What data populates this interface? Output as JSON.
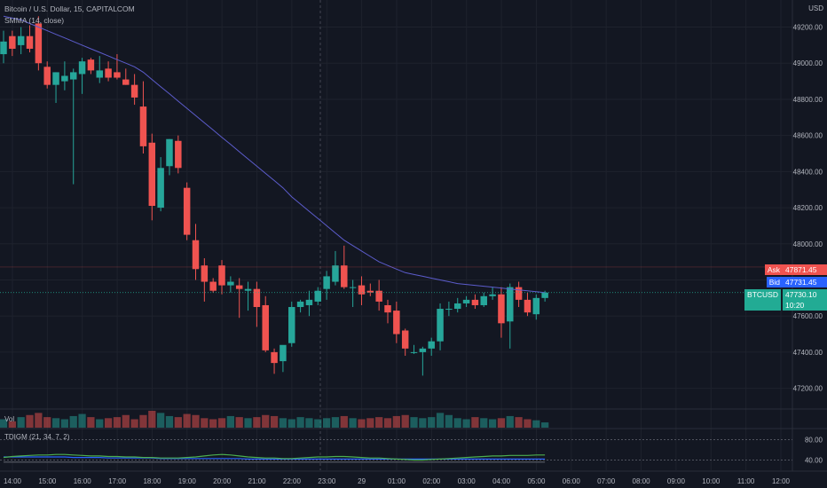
{
  "header": {
    "title": "Bitcoin / U.S. Dollar, 15, CAPITALCOM",
    "indicator": "SMMA (14, close)",
    "currency": "USD"
  },
  "volume_label": "Vol",
  "oscillator_label": "TDIGM (21, 34, 7, 2)",
  "price_tags": {
    "ask_label": "Ask",
    "ask_value": "47871.45",
    "bid_label": "Bid",
    "bid_value": "47731.45",
    "symbol_label": "BTCUSD",
    "last_value": "47730.10",
    "countdown": "10:20"
  },
  "colors": {
    "background": "#131722",
    "up": "#26a69a",
    "down": "#ef5350",
    "smma": "#5c5ccc",
    "ask": "#f05350",
    "bid": "#2962ff",
    "last": "#22ab94"
  },
  "chart_data": {
    "type": "candlestick",
    "title": "Bitcoin / U.S. Dollar, 15, CAPITALCOM",
    "ylabel": "USD",
    "ylim": [
      47090,
      49350
    ],
    "y_ticks": [
      49200,
      49000,
      48800,
      48600,
      48400,
      48200,
      48000,
      47800,
      47600,
      47400,
      47200
    ],
    "x_ticks": [
      "14:00",
      "15:00",
      "16:00",
      "17:00",
      "18:00",
      "19:00",
      "20:00",
      "21:00",
      "22:00",
      "23:00",
      "29",
      "01:00",
      "02:00",
      "03:00",
      "04:00",
      "05:00",
      "06:00",
      "07:00",
      "08:00",
      "09:00",
      "10:00",
      "11:00",
      "12:00"
    ],
    "candles": [
      {
        "o": 49050,
        "h": 49180,
        "l": 49000,
        "c": 49120
      },
      {
        "o": 49150,
        "h": 49180,
        "l": 49040,
        "c": 49080
      },
      {
        "o": 49100,
        "h": 49200,
        "l": 49050,
        "c": 49150
      },
      {
        "o": 49150,
        "h": 49210,
        "l": 49060,
        "c": 49080
      },
      {
        "o": 49220,
        "h": 49260,
        "l": 48960,
        "c": 49000
      },
      {
        "o": 48980,
        "h": 49010,
        "l": 48860,
        "c": 48880
      },
      {
        "o": 48880,
        "h": 48950,
        "l": 48780,
        "c": 48950
      },
      {
        "o": 48900,
        "h": 49010,
        "l": 48850,
        "c": 48930
      },
      {
        "o": 48910,
        "h": 48970,
        "l": 48330,
        "c": 48950
      },
      {
        "o": 48940,
        "h": 49030,
        "l": 48830,
        "c": 49010
      },
      {
        "o": 49020,
        "h": 49030,
        "l": 48940,
        "c": 48960
      },
      {
        "o": 48920,
        "h": 49040,
        "l": 48890,
        "c": 48960
      },
      {
        "o": 48970,
        "h": 49010,
        "l": 48900,
        "c": 48920
      },
      {
        "o": 48950,
        "h": 49050,
        "l": 48910,
        "c": 48920
      },
      {
        "o": 48910,
        "h": 48970,
        "l": 48880,
        "c": 48880
      },
      {
        "o": 48880,
        "h": 48940,
        "l": 48770,
        "c": 48810
      },
      {
        "o": 48760,
        "h": 48900,
        "l": 48500,
        "c": 48540
      },
      {
        "o": 48560,
        "h": 48610,
        "l": 48130,
        "c": 48210
      },
      {
        "o": 48200,
        "h": 48480,
        "l": 48180,
        "c": 48420
      },
      {
        "o": 48430,
        "h": 48580,
        "l": 48380,
        "c": 48580
      },
      {
        "o": 48570,
        "h": 48600,
        "l": 48390,
        "c": 48420
      },
      {
        "o": 48310,
        "h": 48340,
        "l": 48020,
        "c": 48050
      },
      {
        "o": 48020,
        "h": 48110,
        "l": 47800,
        "c": 47860
      },
      {
        "o": 47880,
        "h": 47920,
        "l": 47680,
        "c": 47790
      },
      {
        "o": 47790,
        "h": 47810,
        "l": 47730,
        "c": 47740
      },
      {
        "o": 47880,
        "h": 47910,
        "l": 47720,
        "c": 47770
      },
      {
        "o": 47770,
        "h": 47820,
        "l": 47730,
        "c": 47790
      },
      {
        "o": 47770,
        "h": 47810,
        "l": 47590,
        "c": 47750
      },
      {
        "o": 47740,
        "h": 47790,
        "l": 47630,
        "c": 47750
      },
      {
        "o": 47750,
        "h": 47790,
        "l": 47540,
        "c": 47650
      },
      {
        "o": 47660,
        "h": 47710,
        "l": 47400,
        "c": 47410
      },
      {
        "o": 47400,
        "h": 47420,
        "l": 47280,
        "c": 47340
      },
      {
        "o": 47350,
        "h": 47420,
        "l": 47290,
        "c": 47440
      },
      {
        "o": 47450,
        "h": 47680,
        "l": 47430,
        "c": 47650
      },
      {
        "o": 47650,
        "h": 47690,
        "l": 47620,
        "c": 47680
      },
      {
        "o": 47660,
        "h": 47740,
        "l": 47600,
        "c": 47690
      },
      {
        "o": 47680,
        "h": 47760,
        "l": 47660,
        "c": 47740
      },
      {
        "o": 47750,
        "h": 47850,
        "l": 47690,
        "c": 47820
      },
      {
        "o": 47790,
        "h": 47960,
        "l": 47770,
        "c": 47880
      },
      {
        "o": 47880,
        "h": 47990,
        "l": 47750,
        "c": 47760
      },
      {
        "o": 47760,
        "h": 47800,
        "l": 47650,
        "c": 47760
      },
      {
        "o": 47770,
        "h": 47820,
        "l": 47660,
        "c": 47720
      },
      {
        "o": 47740,
        "h": 47780,
        "l": 47710,
        "c": 47730
      },
      {
        "o": 47740,
        "h": 47800,
        "l": 47630,
        "c": 47680
      },
      {
        "o": 47660,
        "h": 47690,
        "l": 47560,
        "c": 47620
      },
      {
        "o": 47630,
        "h": 47680,
        "l": 47450,
        "c": 47500
      },
      {
        "o": 47520,
        "h": 47530,
        "l": 47380,
        "c": 47420
      },
      {
        "o": 47400,
        "h": 47440,
        "l": 47390,
        "c": 47400
      },
      {
        "o": 47400,
        "h": 47430,
        "l": 47270,
        "c": 47420
      },
      {
        "o": 47420,
        "h": 47480,
        "l": 47380,
        "c": 47460
      },
      {
        "o": 47460,
        "h": 47670,
        "l": 47410,
        "c": 47640
      },
      {
        "o": 47640,
        "h": 47680,
        "l": 47600,
        "c": 47640
      },
      {
        "o": 47640,
        "h": 47700,
        "l": 47620,
        "c": 47670
      },
      {
        "o": 47670,
        "h": 47710,
        "l": 47650,
        "c": 47690
      },
      {
        "o": 47690,
        "h": 47720,
        "l": 47640,
        "c": 47660
      },
      {
        "o": 47660,
        "h": 47730,
        "l": 47650,
        "c": 47710
      },
      {
        "o": 47710,
        "h": 47760,
        "l": 47690,
        "c": 47720
      },
      {
        "o": 47720,
        "h": 47760,
        "l": 47480,
        "c": 47560
      },
      {
        "o": 47570,
        "h": 47780,
        "l": 47420,
        "c": 47760
      },
      {
        "o": 47760,
        "h": 47790,
        "l": 47650,
        "c": 47690
      },
      {
        "o": 47690,
        "h": 47730,
        "l": 47600,
        "c": 47620
      },
      {
        "o": 47610,
        "h": 47720,
        "l": 47580,
        "c": 47700
      },
      {
        "o": 47700,
        "h": 47740,
        "l": 47680,
        "c": 47730
      }
    ],
    "smma": [
      49260,
      49250,
      49240,
      49220,
      49200,
      49180,
      49160,
      49140,
      49120,
      49100,
      49080,
      49060,
      49040,
      49020,
      49000,
      48980,
      48950,
      48910,
      48870,
      48830,
      48790,
      48750,
      48710,
      48670,
      48630,
      48590,
      48550,
      48510,
      48470,
      48430,
      48390,
      48350,
      48310,
      48260,
      48220,
      48180,
      48140,
      48100,
      48060,
      48020,
      47990,
      47960,
      47930,
      47900,
      47880,
      47860,
      47840,
      47830,
      47820,
      47810,
      47800,
      47790,
      47780,
      47775,
      47770,
      47765,
      47760,
      47755,
      47750,
      47745,
      47740,
      47735,
      47730
    ],
    "volume": [
      8,
      6,
      10,
      12,
      14,
      10,
      9,
      8,
      11,
      13,
      10,
      8,
      9,
      10,
      12,
      8,
      12,
      16,
      14,
      11,
      10,
      13,
      12,
      9,
      8,
      9,
      11,
      10,
      9,
      10,
      12,
      11,
      9,
      8,
      10,
      9,
      8,
      9,
      10,
      11,
      9,
      8,
      9,
      10,
      9,
      11,
      12,
      10,
      9,
      10,
      14,
      12,
      9,
      8,
      10,
      9,
      8,
      9,
      11,
      10,
      8,
      7,
      5
    ],
    "oscillator": {
      "ylim": [
        20,
        100
      ],
      "levels": [
        80,
        40
      ],
      "green": [
        45,
        47,
        48,
        49,
        50,
        50,
        51,
        51,
        50,
        49,
        48,
        48,
        47,
        47,
        46,
        46,
        45,
        45,
        44,
        44,
        44,
        45,
        46,
        48,
        50,
        51,
        50,
        48,
        46,
        45,
        44,
        44,
        43,
        43,
        44,
        45,
        46,
        46,
        47,
        47,
        46,
        45,
        44,
        44,
        43,
        42,
        41,
        40,
        40,
        41,
        42,
        43,
        44,
        45,
        46,
        47,
        48,
        48,
        49,
        49,
        49,
        50,
        50
      ],
      "blue": [
        46,
        46,
        46,
        46,
        46,
        46,
        46,
        46,
        45,
        45,
        45,
        45,
        44,
        44,
        44,
        44,
        44,
        44,
        43,
        43,
        43,
        43,
        43,
        43,
        43,
        43,
        43,
        43,
        42,
        42,
        42,
        42,
        42,
        42,
        42,
        42,
        42,
        42,
        42,
        42,
        42,
        42,
        42,
        42,
        42,
        42,
        42,
        42,
        42,
        42,
        42,
        42,
        42,
        42,
        42,
        42,
        42,
        42,
        42,
        42,
        42,
        42,
        42
      ],
      "black": [
        36,
        36,
        36,
        36,
        36,
        36,
        36,
        36,
        36,
        36,
        36,
        36,
        36,
        36,
        36,
        36,
        36,
        36,
        36,
        36,
        36,
        36,
        36,
        36,
        36,
        36,
        36,
        36,
        36,
        36,
        36,
        36,
        36,
        36,
        36,
        36,
        36,
        36,
        36,
        36,
        36,
        36,
        36,
        36,
        36,
        36,
        36,
        36,
        36,
        36,
        36,
        36,
        36,
        36,
        36,
        36,
        36,
        36,
        36,
        36,
        36,
        36,
        36
      ]
    }
  }
}
